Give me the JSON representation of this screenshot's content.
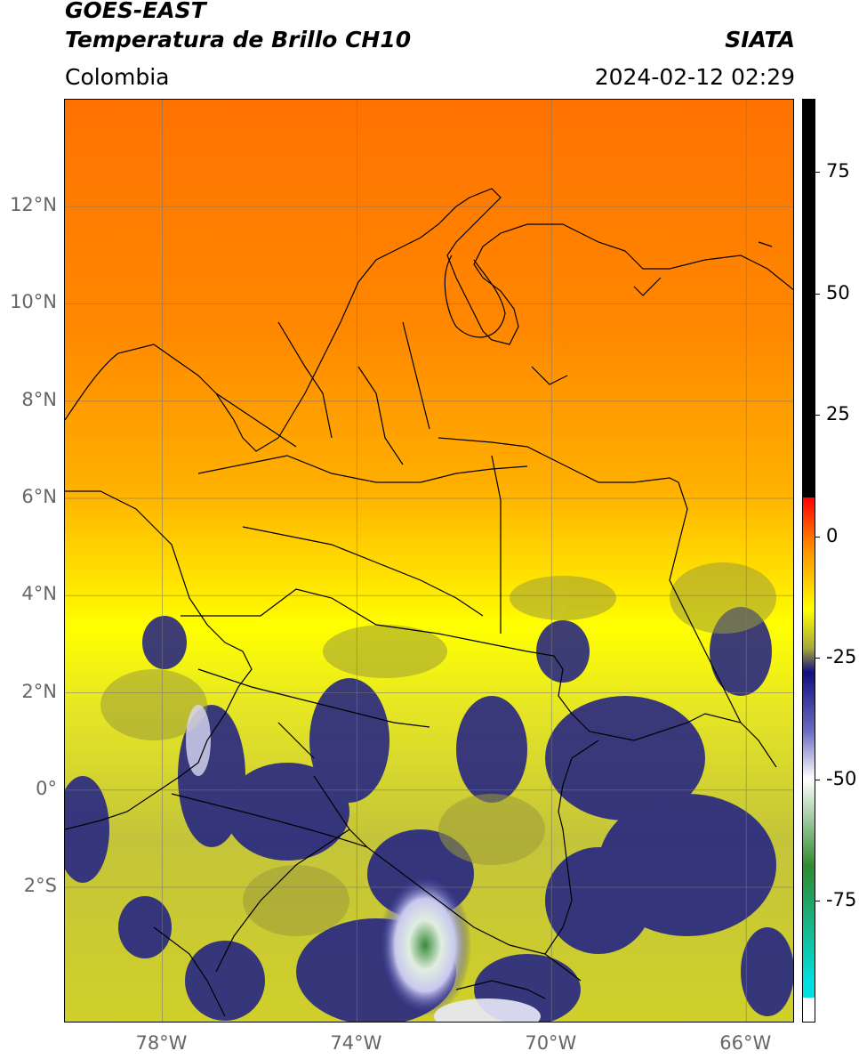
{
  "header": {
    "satellite": "GOES-EAST",
    "product": "Temperatura de Brillo CH10",
    "brand": "SIATA",
    "region": "Colombia",
    "timestamp": "2024-02-12 02:29"
  },
  "map": {
    "lat_range": [
      -4.8,
      14.2
    ],
    "lon_range": [
      -80.0,
      -65.0
    ],
    "lat_ticks": [
      {
        "value": 12,
        "label": "12°N"
      },
      {
        "value": 10,
        "label": "10°N"
      },
      {
        "value": 8,
        "label": "8°N"
      },
      {
        "value": 6,
        "label": "6°N"
      },
      {
        "value": 4,
        "label": "4°N"
      },
      {
        "value": 2,
        "label": "2°N"
      },
      {
        "value": 0,
        "label": "0°"
      },
      {
        "value": -2,
        "label": "2°S"
      }
    ],
    "lon_ticks": [
      {
        "value": -78,
        "label": "78°W"
      },
      {
        "value": -74,
        "label": "74°W"
      },
      {
        "value": -70,
        "label": "70°W"
      },
      {
        "value": -66,
        "label": "66°W"
      }
    ],
    "grid": true
  },
  "colorbar": {
    "range": [
      -100,
      90
    ],
    "ticks": [
      {
        "value": 75,
        "label": "75"
      },
      {
        "value": 50,
        "label": "50"
      },
      {
        "value": 25,
        "label": "25"
      },
      {
        "value": 0,
        "label": "0"
      },
      {
        "value": -25,
        "label": "-25"
      },
      {
        "value": -50,
        "label": "-50"
      },
      {
        "value": -75,
        "label": "-75"
      }
    ],
    "colors": {
      "black": "#000000",
      "red": "#ff0000",
      "orange": "#ff8a00",
      "yellow": "#ffff00",
      "olive": "#a9a93a",
      "navy": "#101080",
      "white": "#ffffff",
      "green": "#2e8b2e",
      "cyan": "#00e0e0"
    }
  }
}
